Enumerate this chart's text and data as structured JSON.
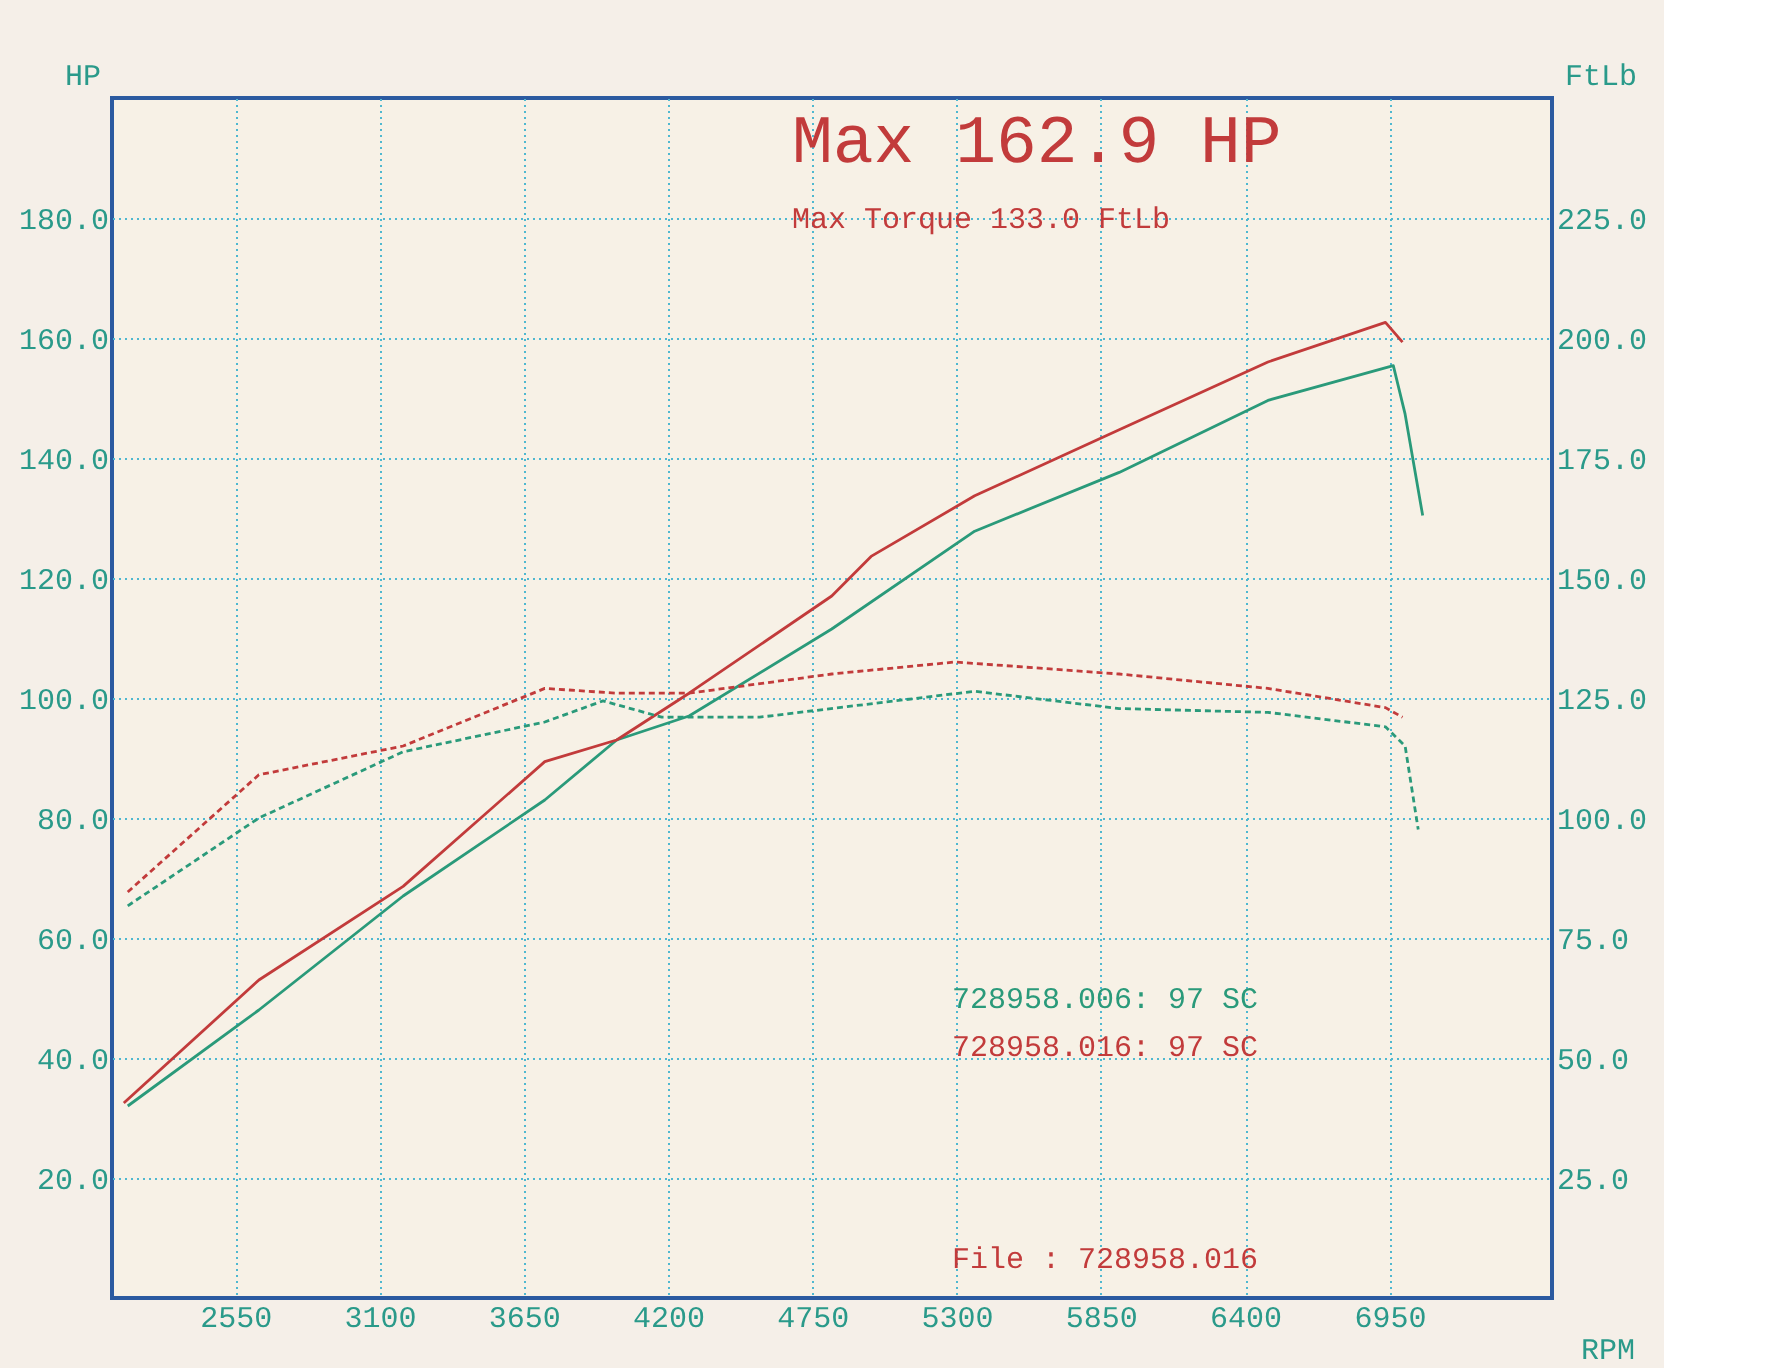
{
  "chart_data": {
    "type": "line",
    "xlabel": "RPM",
    "ylabel": "HP",
    "y2label": "FtLb",
    "xlim": [
      2080,
      7570
    ],
    "xticks": [
      2550,
      3100,
      3650,
      4200,
      4750,
      5300,
      5850,
      6400,
      6950
    ],
    "ylim": [
      0,
      200
    ],
    "yticks": [
      {
        "value": 20,
        "label": "20.0"
      },
      {
        "value": 40,
        "label": "40.0"
      },
      {
        "value": 60,
        "label": "60.0"
      },
      {
        "value": 80,
        "label": "80.0"
      },
      {
        "value": 100,
        "label": "100.0"
      },
      {
        "value": 120,
        "label": "120.0"
      },
      {
        "value": 140,
        "label": "140.0"
      },
      {
        "value": 160,
        "label": "160.0"
      },
      {
        "value": 180,
        "label": "180.0"
      }
    ],
    "y2lim": [
      0,
      250
    ],
    "y2ticks": [
      {
        "value": 25,
        "label": "25.0"
      },
      {
        "value": 50,
        "label": "50.0"
      },
      {
        "value": 75,
        "label": "75.0"
      },
      {
        "value": 100,
        "label": "100.0"
      },
      {
        "value": 125,
        "label": "125.0"
      },
      {
        "value": 150,
        "label": "150.0"
      },
      {
        "value": 175,
        "label": "175.0"
      },
      {
        "value": 200,
        "label": "200.0"
      },
      {
        "value": 225,
        "label": "225.0"
      }
    ],
    "grid": true,
    "legend": "bottom right",
    "marker": "none",
    "annotations": [
      "Max 162.9 HP",
      "Max Torque 133.0 FtLb",
      "File      : 728958.016"
    ],
    "series": [
      {
        "name": "728958.006: 97 SC",
        "color": "#2a9a7a",
        "line_style": "solid",
        "x": [
          2140,
          2640,
          3190,
          3730,
          4004,
          4280,
          4824,
          5369,
          5920,
          6487,
          6965,
          7010,
          7077
        ],
        "values": [
          32,
          48,
          67,
          83,
          93,
          97,
          111.5,
          127.8,
          137.6,
          149.6,
          155.4,
          147.3,
          130.4
        ]
      },
      {
        "name": "728958.016: 97 SC",
        "color": "#c23b3b",
        "line_style": "solid",
        "x": [
          2125,
          2640,
          3190,
          3730,
          4004,
          4280,
          4824,
          4974,
          5369,
          5920,
          6487,
          6935,
          7000
        ],
        "values": [
          32.5,
          53,
          68.6,
          89.4,
          93,
          100.8,
          117,
          123.6,
          133.7,
          144.7,
          156,
          162.6,
          159.3
        ]
      },
      {
        "color": "#2a9a7a",
        "line_style": "dashed",
        "axis": "y2",
        "x": [
          2140,
          2640,
          3190,
          3730,
          3952,
          4176,
          4549,
          5369,
          5920,
          6487,
          6935,
          7010,
          7060
        ],
        "values": [
          81.7,
          100,
          113.8,
          120,
          124.4,
          121,
          121,
          126.4,
          122.8,
          122,
          119,
          115,
          97.6
        ]
      },
      {
        "color": "#c23b3b",
        "line_style": "dashed",
        "axis": "y2",
        "x": [
          2140,
          2640,
          3190,
          3730,
          4004,
          4280,
          4824,
          5295,
          5920,
          6487,
          6935,
          7000
        ],
        "values": [
          84.6,
          109,
          115,
          127,
          126,
          126,
          130,
          132.5,
          130,
          127,
          123,
          121
        ]
      }
    ]
  }
}
